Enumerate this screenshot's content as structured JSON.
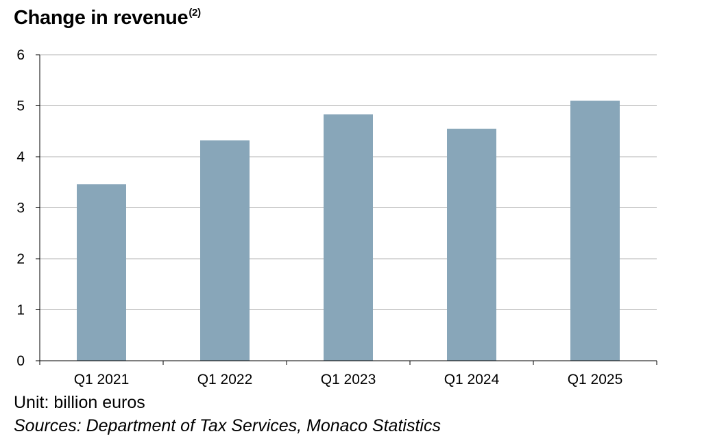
{
  "title": "Change in revenue",
  "title_note": "(2)",
  "unit_note": "Unit: billion euros",
  "source_note": "Sources: Department of Tax Services, Monaco Statistics",
  "colors": {
    "bar": "#88a6b9",
    "grid": "#b3b3b3",
    "axis": "#000000"
  },
  "chart_data": {
    "type": "bar",
    "title": "Change in revenue",
    "xlabel": "",
    "ylabel": "",
    "categories": [
      "Q1 2021",
      "Q1 2022",
      "Q1 2023",
      "Q1 2024",
      "Q1 2025"
    ],
    "values": [
      3.46,
      4.32,
      4.83,
      4.55,
      5.1
    ],
    "ylim": [
      0,
      6
    ],
    "yticks": [
      0,
      1,
      2,
      3,
      4,
      5,
      6
    ],
    "grid": true,
    "legend": "none"
  }
}
